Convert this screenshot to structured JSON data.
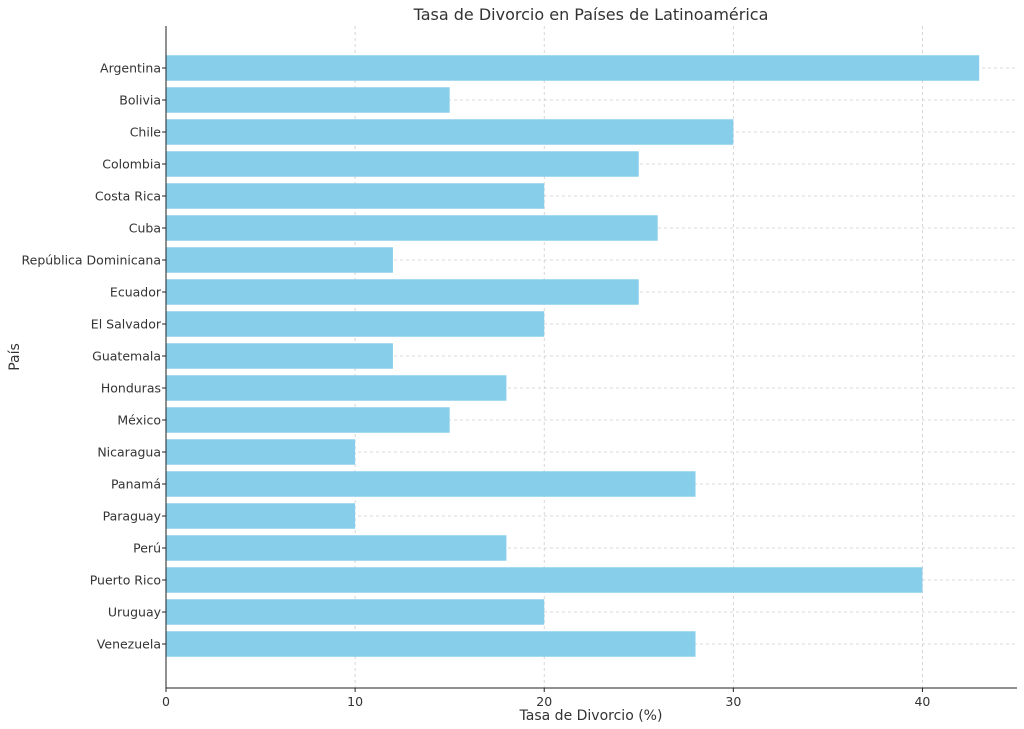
{
  "chart_data": {
    "type": "bar",
    "orientation": "horizontal",
    "title": "Tasa de Divorcio en Países de Latinoamérica",
    "xlabel": "Tasa de Divorcio (%)",
    "ylabel": "País",
    "categories": [
      "Argentina",
      "Bolivia",
      "Chile",
      "Colombia",
      "Costa Rica",
      "Cuba",
      "República Dominicana",
      "Ecuador",
      "El Salvador",
      "Guatemala",
      "Honduras",
      "México",
      "Nicaragua",
      "Panamá",
      "Paraguay",
      "Perú",
      "Puerto Rico",
      "Uruguay",
      "Venezuela"
    ],
    "values": [
      43,
      15,
      30,
      25,
      20,
      26,
      12,
      25,
      20,
      12,
      18,
      15,
      10,
      28,
      10,
      18,
      40,
      20,
      28
    ],
    "xlim": [
      0,
      45
    ],
    "xticks": [
      "0",
      "10",
      "20",
      "30",
      "40"
    ],
    "grid": true,
    "bar_color": "#87CEEB"
  }
}
